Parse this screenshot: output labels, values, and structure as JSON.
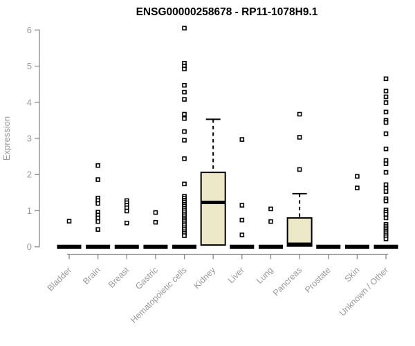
{
  "page": {
    "background": "#ffffff"
  },
  "chart_data": {
    "type": "boxplot",
    "title": "ENSG00000258678 - RP11-1078H9.1",
    "ylabel": "Expression",
    "xlabel": "",
    "ylim": [
      0,
      6.3
    ],
    "yticks": [
      0,
      1,
      2,
      3,
      4,
      5,
      6
    ],
    "grid": false,
    "legend": "none",
    "marker_style": "open-square",
    "categories": [
      "Bladder",
      "Brain",
      "Breast",
      "Gastric",
      "Hematopoietic cells",
      "Kidney",
      "Liver",
      "Lung",
      "Pancreas",
      "Prostate",
      "Skin",
      "Unknown / Other"
    ],
    "boxes": [
      {
        "category": "Bladder",
        "q1": 0,
        "median": 0,
        "q3": 0,
        "whisker_low": 0,
        "whisker_high": 0,
        "outliers": [
          0.71
        ]
      },
      {
        "category": "Brain",
        "q1": 0,
        "median": 0,
        "q3": 0,
        "whisker_low": 0,
        "whisker_high": 0,
        "outliers": [
          2.25,
          1.86,
          1.35,
          1.28,
          1.2,
          0.96,
          0.88,
          0.8,
          0.7,
          0.48
        ]
      },
      {
        "category": "Breast",
        "q1": 0,
        "median": 0,
        "q3": 0,
        "whisker_low": 0,
        "whisker_high": 0,
        "outliers": [
          1.28,
          1.22,
          1.15,
          1.08,
          0.99,
          0.66
        ]
      },
      {
        "category": "Gastric",
        "q1": 0,
        "median": 0,
        "q3": 0,
        "whisker_low": 0,
        "whisker_high": 0,
        "outliers": [
          0.95,
          0.68
        ]
      },
      {
        "category": "Hematopoietic cells",
        "q1": 0,
        "median": 0,
        "q3": 0,
        "whisker_low": 0,
        "whisker_high": 0,
        "outliers": [
          6.05,
          5.08,
          5.0,
          4.92,
          4.47,
          4.28,
          4.08,
          3.67,
          3.55,
          3.19,
          2.95,
          2.44,
          1.74,
          1.4,
          1.35,
          1.29,
          1.24,
          1.18,
          1.13,
          1.07,
          1.02,
          0.97,
          0.91,
          0.86,
          0.8,
          0.75,
          0.7,
          0.64,
          0.59,
          0.53,
          0.48,
          0.42,
          0.37,
          0.31
        ]
      },
      {
        "category": "Kidney",
        "q1": 0.05,
        "median": 1.23,
        "q3": 2.06,
        "whisker_low": 0.05,
        "whisker_high": 3.53,
        "outliers": []
      },
      {
        "category": "Liver",
        "q1": 0,
        "median": 0,
        "q3": 0,
        "whisker_low": 0,
        "whisker_high": 0,
        "outliers": [
          2.97,
          1.15,
          0.74,
          0.33
        ]
      },
      {
        "category": "Lung",
        "q1": 0,
        "median": 0,
        "q3": 0,
        "whisker_low": 0,
        "whisker_high": 0,
        "outliers": [
          1.05,
          0.7
        ]
      },
      {
        "category": "Pancreas",
        "q1": 0.02,
        "median": 0.07,
        "q3": 0.8,
        "whisker_low": 0.02,
        "whisker_high": 1.47,
        "outliers": [
          3.67,
          3.03,
          2.14
        ]
      },
      {
        "category": "Prostate",
        "q1": 0,
        "median": 0,
        "q3": 0,
        "whisker_low": 0,
        "whisker_high": 0,
        "outliers": []
      },
      {
        "category": "Skin",
        "q1": 0,
        "median": 0,
        "q3": 0,
        "whisker_low": 0,
        "whisker_high": 0,
        "outliers": [
          1.95,
          1.63
        ]
      },
      {
        "category": "Unknown / Other",
        "q1": 0,
        "median": 0,
        "q3": 0,
        "whisker_low": 0,
        "whisker_high": 0,
        "outliers": [
          4.65,
          4.31,
          4.15,
          3.99,
          3.73,
          3.5,
          3.44,
          3.13,
          2.71,
          2.39,
          2.3,
          2.06,
          1.72,
          1.62,
          1.53,
          1.33,
          1.27,
          1.02,
          0.96,
          0.9,
          0.8,
          0.62,
          0.56,
          0.5,
          0.44,
          0.39,
          0.33,
          0.28,
          0.22
        ]
      }
    ],
    "colors": {
      "box_fill": "#EDE8C8",
      "box_border": "#000000",
      "median": "#000000",
      "whisker": "#000000",
      "outlier_stroke": "#000000",
      "outlier_fill": "#ffffff",
      "axis_line": "#8a8a8a",
      "tick_label": "#999999",
      "axis_label": "#999999",
      "title": "#000000",
      "background": "#ffffff"
    }
  }
}
